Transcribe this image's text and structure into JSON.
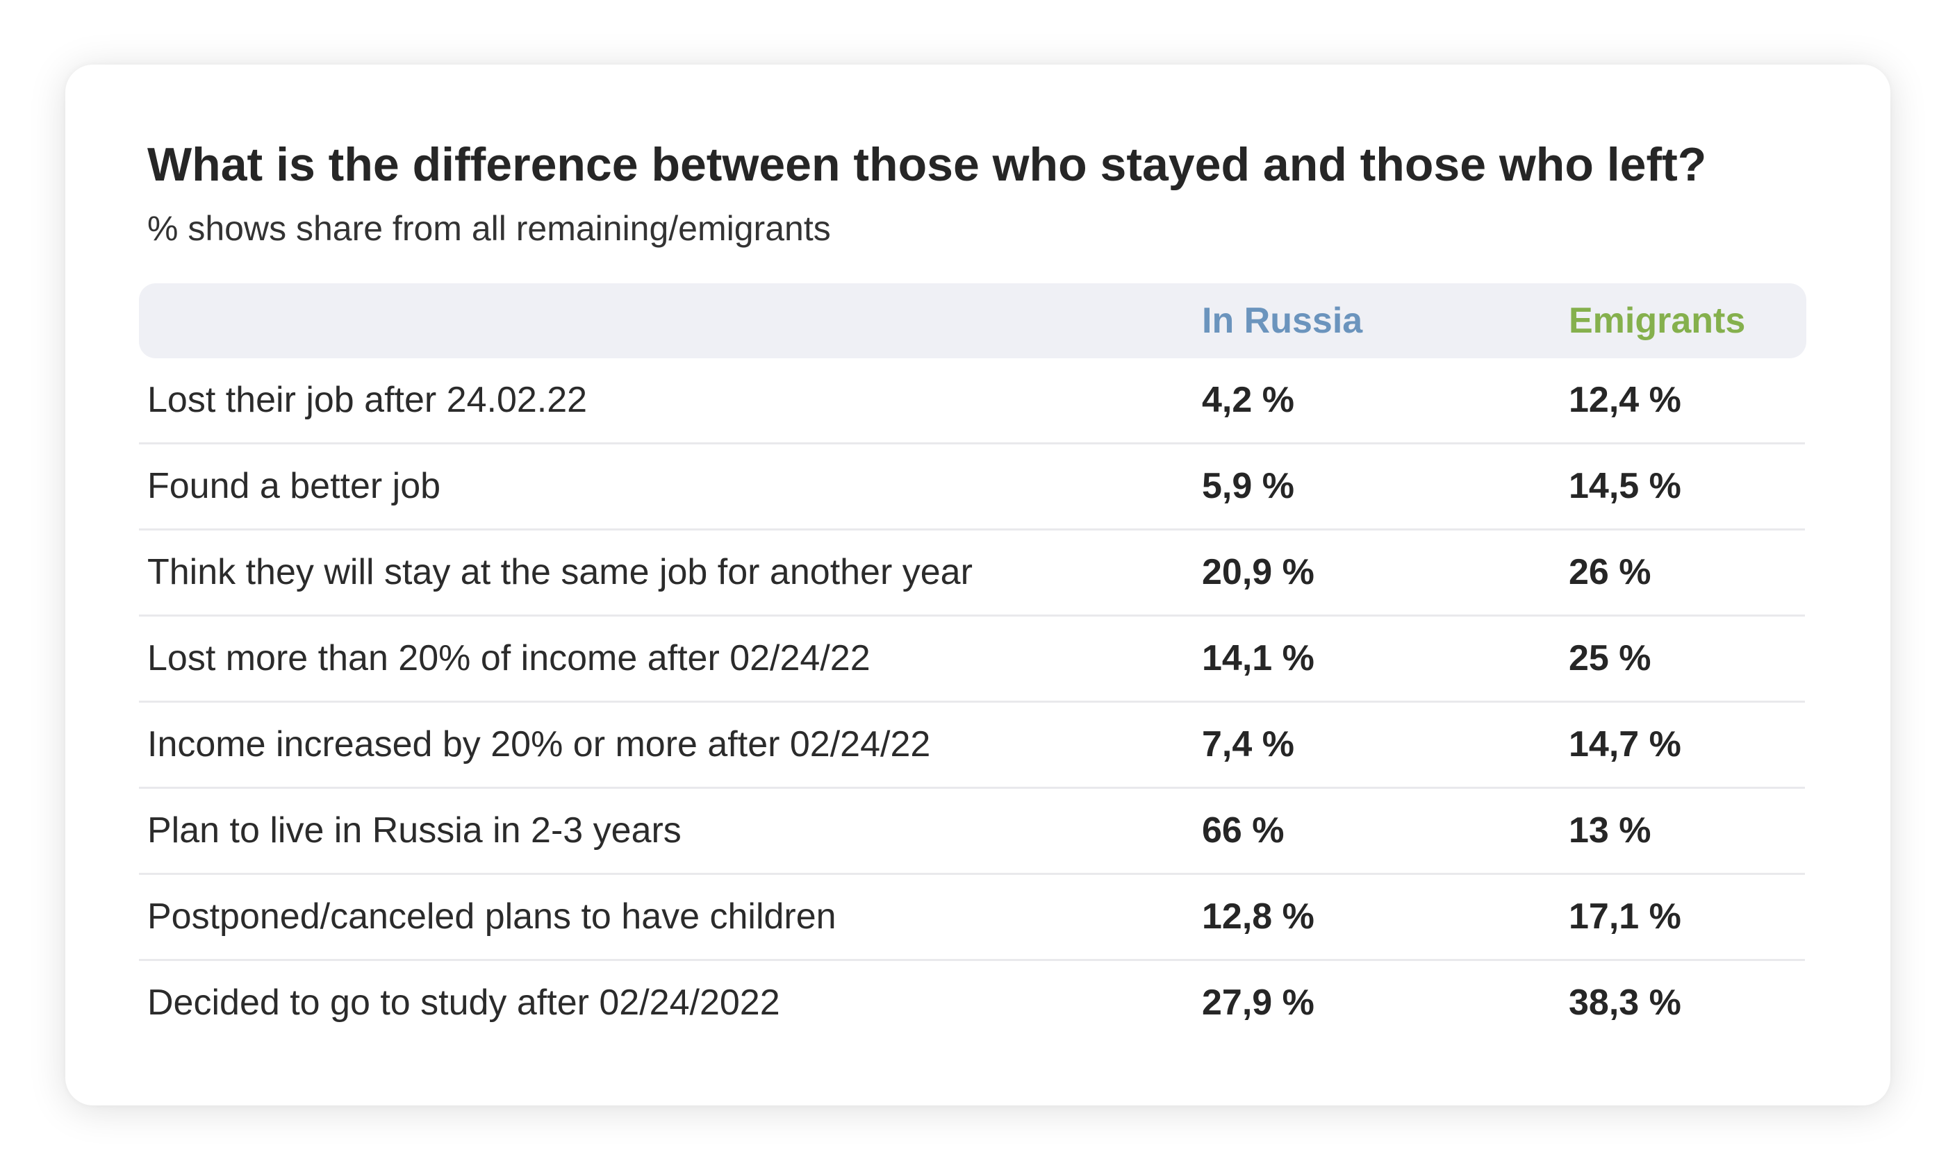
{
  "chart_data": {
    "type": "table",
    "title": "What is the difference between those who stayed and those who left?",
    "subtitle": "% shows share from all remaining/emigrants",
    "columns": [
      {
        "name": "In Russia",
        "color": "#6b94bd"
      },
      {
        "name": "Emigrants",
        "color": "#85b04d"
      }
    ],
    "rows": [
      {
        "label": "Lost their job after 24.02.22",
        "in_russia": "4,2 %",
        "emigrants": "12,4 %"
      },
      {
        "label": "Found a better job",
        "in_russia": "5,9 %",
        "emigrants": "14,5 %"
      },
      {
        "label": "Think they will stay at the same job for another year",
        "in_russia": "20,9 %",
        "emigrants": "26 %"
      },
      {
        "label": "Lost more than 20% of income after 02/24/22",
        "in_russia": "14,1 %",
        "emigrants": "25 %"
      },
      {
        "label": "Income increased by 20% or more after 02/24/22",
        "in_russia": "7,4 %",
        "emigrants": "14,7 %"
      },
      {
        "label": "Plan to live in Russia in 2-3 years",
        "in_russia": "66 %",
        "emigrants": "13 %"
      },
      {
        "label": "Postponed/canceled plans to have children",
        "in_russia": "12,8 %",
        "emigrants": "17,1 %"
      },
      {
        "label": "Decided to go to study after 02/24/2022",
        "in_russia": "27,9 %",
        "emigrants": "38,3 %"
      }
    ]
  }
}
